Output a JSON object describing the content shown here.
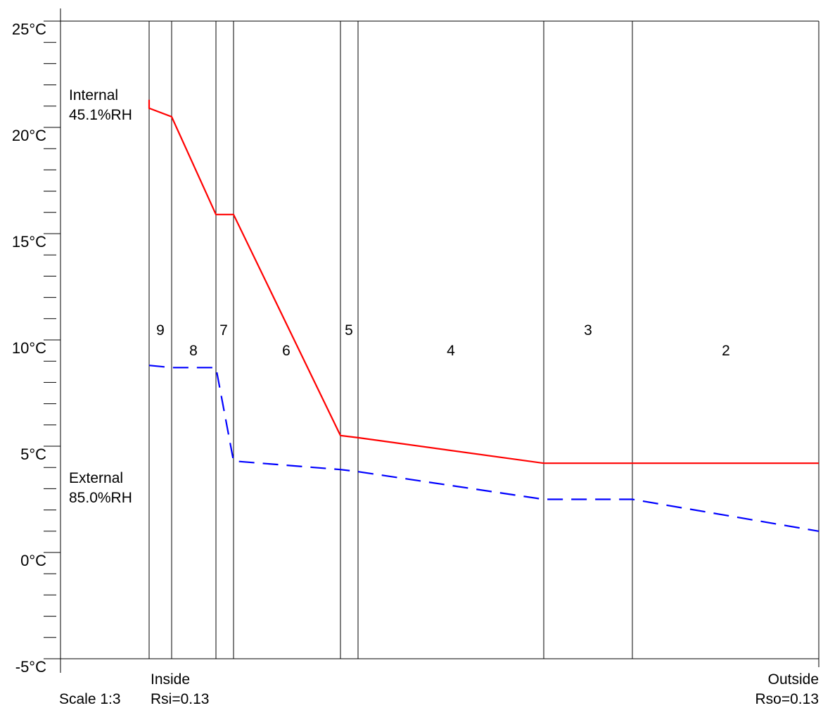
{
  "chart_data": {
    "type": "line",
    "title": "",
    "xlabel": "",
    "ylabel": "",
    "ylim": [
      -5,
      25
    ],
    "y_ticks": [
      {
        "value": 25,
        "label": "25°C"
      },
      {
        "value": 20,
        "label": "20°C"
      },
      {
        "value": 15,
        "label": "15°C"
      },
      {
        "value": 10,
        "label": "10°C"
      },
      {
        "value": 5,
        "label": "5°C"
      },
      {
        "value": 0,
        "label": "0°C"
      },
      {
        "value": -5,
        "label": "-5°C"
      }
    ],
    "minor_tick_step": 1,
    "layers": [
      {
        "label": "9"
      },
      {
        "label": "8"
      },
      {
        "label": "7"
      },
      {
        "label": "6"
      },
      {
        "label": "5"
      },
      {
        "label": "4"
      },
      {
        "label": "3"
      },
      {
        "label": "2"
      }
    ],
    "series": [
      {
        "line_color": "#ff0000",
        "line_style": "solid",
        "values": [
          21.3,
          20.9,
          20.5,
          15.9,
          15.9,
          5.5,
          5.4,
          4.2,
          4.2,
          4.2
        ]
      },
      {
        "line_color": "#0000ff",
        "line_style": "dashed",
        "values": [
          null,
          8.8,
          8.7,
          8.7,
          4.3,
          3.9,
          3.8,
          2.5,
          2.5,
          1.0
        ]
      }
    ],
    "annotations": {
      "internal_label": "Internal",
      "internal_rh": "45.1%RH",
      "external_label": "External",
      "external_rh": "85.0%RH",
      "inside_label": "Inside",
      "outside_label": "Outside",
      "scale": "Scale 1:3",
      "rsi": "Rsi=0.13",
      "rso": "Rso=0.13"
    },
    "grid": false
  }
}
